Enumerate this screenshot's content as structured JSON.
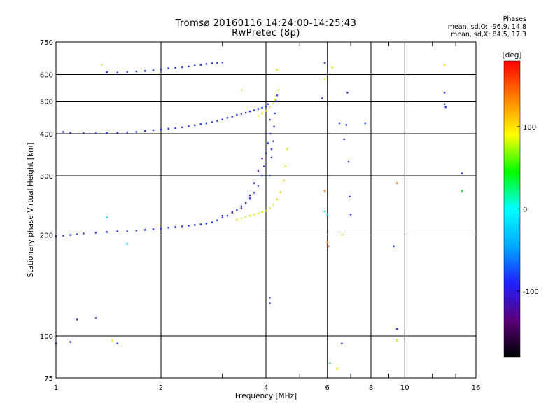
{
  "chart_data": {
    "type": "scatter",
    "title": "Tromsø 20160116 14:24:00-14:25:43",
    "subtitle": "RwPretec (8p)",
    "xlabel": "Frequency [MHz]",
    "ylabel": "Stationary phase Virtual Height [km]",
    "x_scale": "log",
    "y_scale": "log",
    "xlim": [
      1,
      16
    ],
    "ylim": [
      75,
      750
    ],
    "x_ticks": [
      1,
      2,
      4,
      6,
      8,
      10,
      16
    ],
    "y_ticks": [
      75,
      100,
      200,
      300,
      400,
      500,
      600,
      750
    ],
    "grid": true,
    "phase_stats": {
      "heading": "Phases",
      "O": "mean, sd,O: -96.9, 14.8",
      "X": "mean, sd,X:  84.5, 17.3"
    },
    "colorbar": {
      "label": "[deg]",
      "ticks": [
        100,
        0,
        -100
      ],
      "range": [
        -180,
        180
      ],
      "colors": [
        "#000000",
        "#5a007a",
        "#2020ff",
        "#00aaff",
        "#00ffff",
        "#00ff00",
        "#ffff00",
        "#ff8000",
        "#ff0000"
      ]
    },
    "series": [
      {
        "color": "#2440e0",
        "x": [
          1.0,
          1.05,
          1.1,
          1.15,
          1.2,
          1.3,
          1.4,
          1.5,
          1.6,
          1.7,
          1.8,
          1.9,
          2.0,
          2.1,
          2.2,
          2.3,
          2.4,
          2.5,
          2.6,
          2.7,
          2.8,
          2.9,
          3.0,
          3.1,
          3.2,
          3.3,
          3.4,
          3.5,
          3.6,
          3.7,
          3.8,
          3.9,
          3.95,
          4.0,
          4.05
        ],
        "y": [
          198,
          199,
          200,
          201,
          202,
          203,
          204,
          205,
          205,
          206,
          207,
          208,
          209,
          210,
          211,
          212,
          213,
          214,
          215,
          216,
          218,
          221,
          225,
          228,
          233,
          237,
          243,
          250,
          257,
          267,
          280,
          300,
          320,
          350,
          375
        ]
      },
      {
        "color": "#2440e0",
        "x": [
          1.05,
          1.1,
          1.2,
          1.3,
          1.4,
          1.5,
          1.6,
          1.7,
          1.8,
          1.9,
          2.0,
          2.1,
          2.2,
          2.3,
          2.4,
          2.5,
          2.6,
          2.7,
          2.8,
          2.9,
          3.0,
          3.1,
          3.2,
          3.3,
          3.4,
          3.5,
          3.6,
          3.7,
          3.8,
          3.9,
          4.0,
          4.05,
          4.1,
          4.12,
          4.15
        ],
        "y": [
          405,
          403,
          402,
          401,
          402,
          403,
          404,
          405,
          408,
          410,
          412,
          414,
          416,
          418,
          421,
          424,
          427,
          430,
          433,
          437,
          441,
          446,
          450,
          455,
          459,
          462,
          466,
          470,
          474,
          478,
          482,
          490,
          440,
          400,
          360
        ]
      },
      {
        "color": "#2440e0",
        "x": [
          1.4,
          1.5,
          1.6,
          1.7,
          1.8,
          1.9,
          2.0,
          2.1,
          2.2,
          2.3,
          2.4,
          2.5,
          2.6,
          2.7,
          2.8,
          2.9,
          3.0
        ],
        "y": [
          610,
          608,
          611,
          613,
          615,
          618,
          622,
          626,
          628,
          631,
          634,
          638,
          641,
          645,
          648,
          650,
          652
        ]
      },
      {
        "color": "#6a1a9a",
        "x": [
          3.0,
          3.2,
          3.4,
          3.5,
          3.6,
          3.7,
          3.8,
          3.9
        ],
        "y": [
          228,
          234,
          240,
          248,
          262,
          285,
          310,
          338
        ]
      },
      {
        "color": "#e8e020",
        "x": [
          3.3,
          3.4,
          3.5,
          3.6,
          3.7,
          3.8,
          3.9,
          4.0,
          4.1,
          4.2,
          4.3,
          4.4,
          4.5,
          4.55,
          4.6
        ],
        "y": [
          222,
          224,
          226,
          228,
          230,
          232,
          234,
          236,
          240,
          246,
          255,
          268,
          290,
          320,
          360
        ]
      },
      {
        "color": "#e8e020",
        "x": [
          3.8,
          3.9,
          4.0,
          4.1,
          4.2,
          4.25,
          4.3,
          4.35
        ],
        "y": [
          452,
          460,
          468,
          480,
          492,
          505,
          520,
          540
        ]
      },
      {
        "color": "#2440e0",
        "x": [
          4.1,
          4.15,
          4.2,
          4.22,
          4.25,
          4.28,
          4.3
        ],
        "y": [
          300,
          340,
          380,
          420,
          460,
          500,
          520
        ]
      },
      {
        "color": "#2440e0",
        "x": [
          1.0,
          1.1,
          1.15,
          1.3,
          1.5,
          4.1,
          4.1,
          5.8,
          5.9,
          6.5,
          6.6,
          6.7,
          6.8,
          6.85,
          6.9,
          6.95,
          7.0,
          7.7,
          9.3,
          9.5,
          13.0,
          13.0,
          13.1,
          14.6
        ],
        "y": [
          95,
          96,
          112,
          113,
          95,
          130,
          125,
          510,
          650,
          430,
          95,
          385,
          425,
          530,
          330,
          260,
          230,
          430,
          185,
          105,
          530,
          490,
          480,
          305
        ]
      },
      {
        "color": "#e8e020",
        "x": [
          1.35,
          1.45,
          3.4,
          4.3,
          5.9,
          6.2,
          6.4,
          6.6,
          9.5,
          13.0
        ],
        "y": [
          640,
          97,
          540,
          620,
          580,
          630,
          80,
          200,
          97,
          640
        ]
      },
      {
        "color": "#ff7a20",
        "x": [
          5.9,
          6.0,
          6.05,
          9.5
        ],
        "y": [
          270,
          190,
          185,
          285
        ]
      },
      {
        "color": "#00ccee",
        "x": [
          1.4,
          1.6,
          5.9,
          6.0
        ],
        "y": [
          225,
          188,
          235,
          230
        ]
      },
      {
        "color": "#22cc33",
        "x": [
          6.1,
          14.6
        ],
        "y": [
          83,
          270
        ]
      }
    ]
  }
}
